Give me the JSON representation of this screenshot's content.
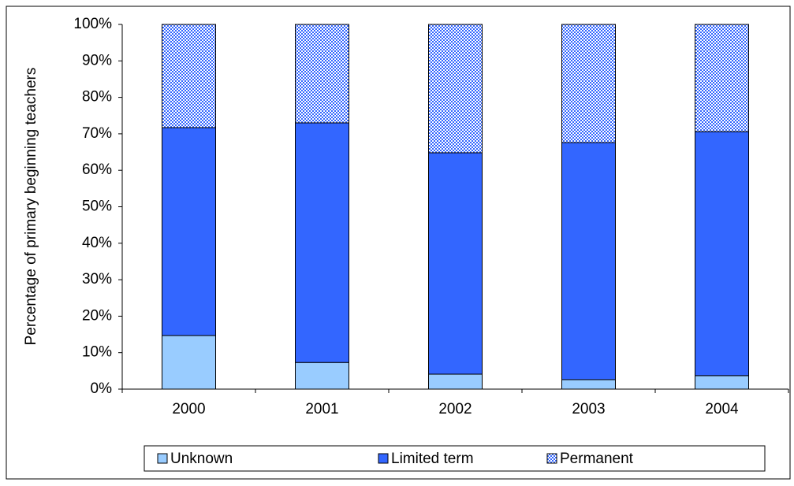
{
  "chart_data": {
    "type": "stacked_bar",
    "y_label": "Percentage of primary beginning teachers",
    "categories": [
      "2000",
      "2001",
      "2002",
      "2003",
      "2004"
    ],
    "series": [
      {
        "name": "Unknown",
        "color": "#99ccff",
        "values": [
          14.7,
          7.3,
          4.1,
          2.6,
          3.7
        ]
      },
      {
        "name": "Limited term",
        "color": "#3366ff",
        "values": [
          57.0,
          65.7,
          60.7,
          65.0,
          66.9
        ]
      },
      {
        "name": "Permanent",
        "color": "#3366ff",
        "pattern": "checker",
        "values": [
          28.3,
          27.0,
          35.2,
          32.4,
          29.4
        ]
      }
    ],
    "ylim": [
      0,
      100
    ],
    "yticks": [
      {
        "value": 0,
        "label": "0%"
      },
      {
        "value": 10,
        "label": "10%"
      },
      {
        "value": 20,
        "label": "20%"
      },
      {
        "value": 30,
        "label": "30%"
      },
      {
        "value": 40,
        "label": "40%"
      },
      {
        "value": 50,
        "label": "50%"
      },
      {
        "value": 60,
        "label": "60%"
      },
      {
        "value": 70,
        "label": "70%"
      },
      {
        "value": 80,
        "label": "80%"
      },
      {
        "value": 90,
        "label": "90%"
      },
      {
        "value": 100,
        "label": "100%"
      }
    ],
    "legend": "bottom"
  }
}
